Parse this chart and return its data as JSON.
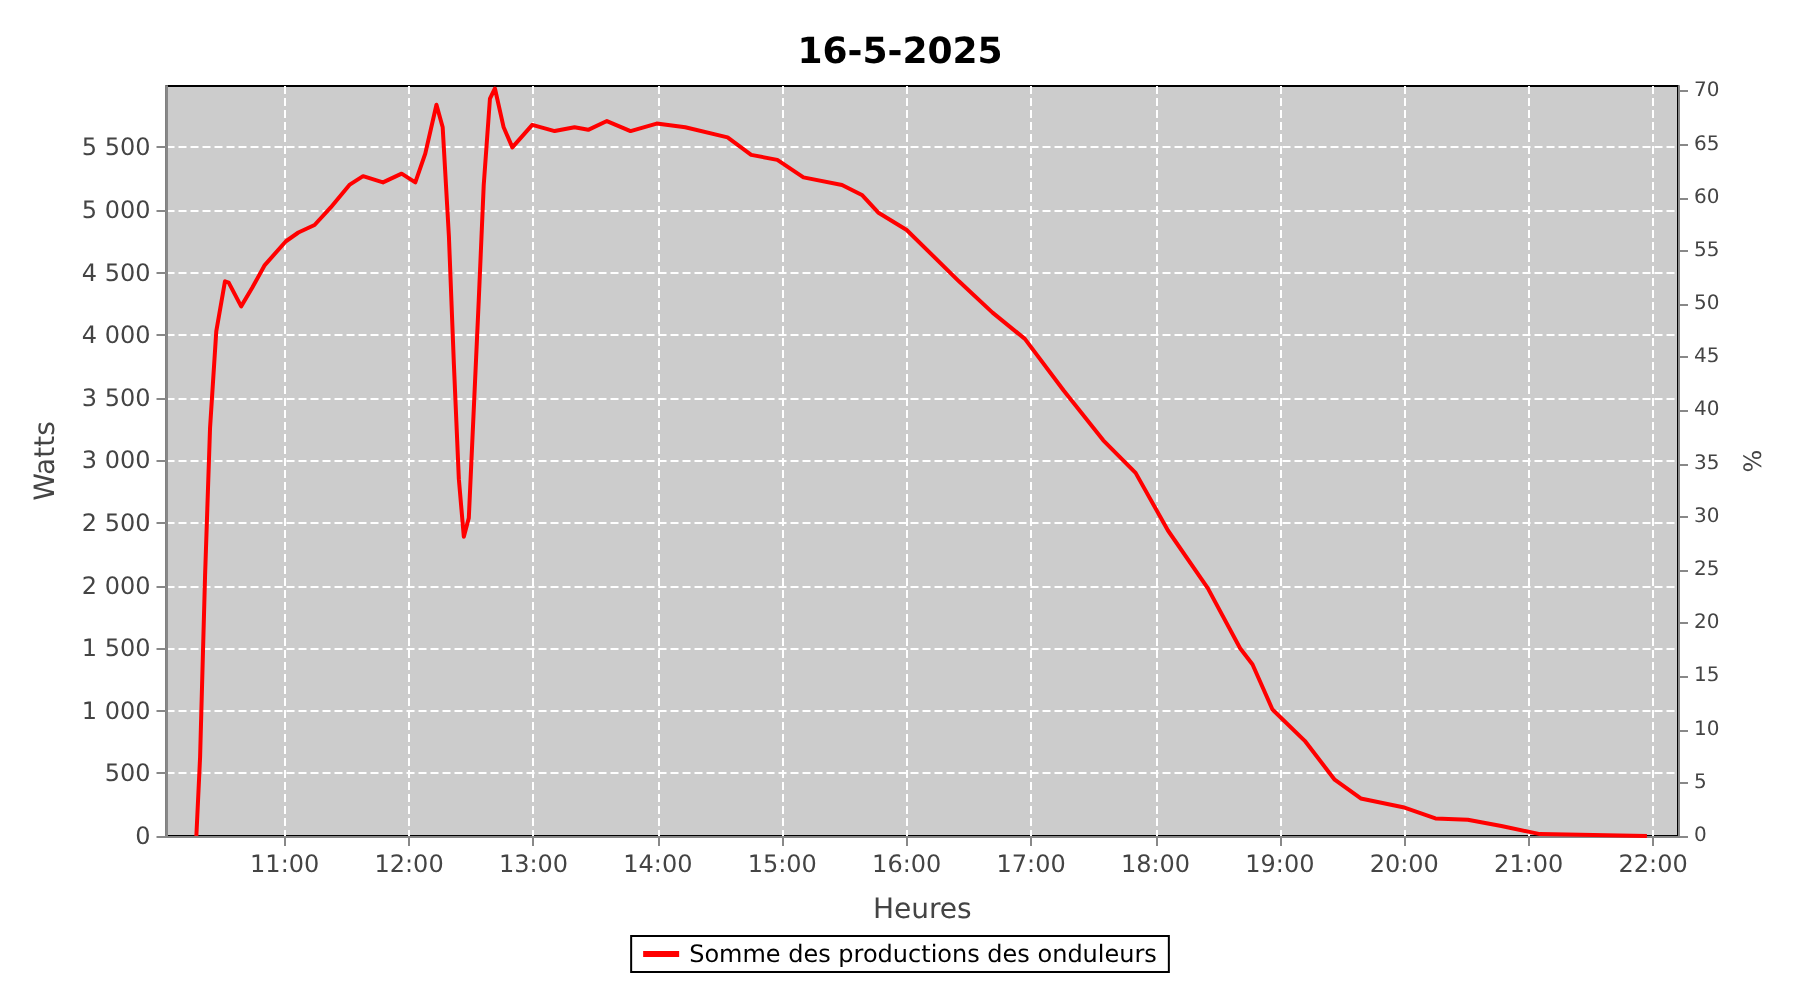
{
  "chart_data": {
    "type": "line",
    "title": "16-5-2025",
    "xlabel": "Heures",
    "ylabel": "Watts",
    "y2label": "%",
    "xlim": [
      10.05,
      22.2
    ],
    "xticks": [
      {
        "value": 11,
        "label": "11:00"
      },
      {
        "value": 12,
        "label": "12:00"
      },
      {
        "value": 13,
        "label": "13:00"
      },
      {
        "value": 14,
        "label": "14:00"
      },
      {
        "value": 15,
        "label": "15:00"
      },
      {
        "value": 16,
        "label": "16:00"
      },
      {
        "value": 17,
        "label": "17:00"
      },
      {
        "value": 18,
        "label": "18:00"
      },
      {
        "value": 19,
        "label": "19:00"
      },
      {
        "value": 20,
        "label": "20:00"
      },
      {
        "value": 21,
        "label": "21:00"
      },
      {
        "value": 22,
        "label": "22:00"
      }
    ],
    "ylim": [
      0,
      5990
    ],
    "yticks": [
      0,
      500,
      {
        "value": 1000,
        "label": "1 000"
      },
      {
        "value": 1500,
        "label": "1 500"
      },
      {
        "value": 2000,
        "label": "2 000"
      },
      {
        "value": 2500,
        "label": "2 500"
      },
      {
        "value": 3000,
        "label": "3 000"
      },
      {
        "value": 3500,
        "label": "3 500"
      },
      {
        "value": 4000,
        "label": "4 000"
      },
      {
        "value": 4500,
        "label": "4 500"
      },
      {
        "value": 5000,
        "label": "5 000"
      },
      {
        "value": 5500,
        "label": "5 500"
      }
    ],
    "y2lim": [
      0,
      70.5
    ],
    "y2ticks": [
      0,
      5,
      10,
      15,
      20,
      25,
      30,
      35,
      40,
      45,
      50,
      55,
      60,
      65,
      70
    ],
    "grid": true,
    "legend": "bottom",
    "marker": "none",
    "line_style": "solid",
    "series": [
      {
        "name": "Somme des productions des onduleurs",
        "color": "#ff0000",
        "x": [
          10.29,
          10.32,
          10.36,
          10.4,
          10.45,
          10.52,
          10.55,
          10.65,
          10.74,
          10.84,
          11.01,
          11.11,
          11.24,
          11.37,
          11.52,
          11.63,
          11.79,
          11.94,
          12.05,
          12.13,
          12.22,
          12.27,
          12.32,
          12.36,
          12.4,
          12.44,
          12.48,
          12.52,
          12.56,
          12.6,
          12.65,
          12.69,
          12.76,
          12.83,
          12.99,
          13.17,
          13.33,
          13.44,
          13.59,
          13.78,
          13.99,
          14.22,
          14.56,
          14.75,
          14.96,
          15.17,
          15.48,
          15.64,
          15.77,
          16.0,
          16.42,
          16.69,
          16.95,
          17.26,
          17.58,
          17.84,
          18.1,
          18.42,
          18.68,
          18.78,
          18.94,
          19.2,
          19.44,
          19.65,
          19.99,
          20.25,
          20.51,
          20.78,
          21.09,
          21.95
        ],
        "values": [
          0,
          630,
          2080,
          3260,
          4030,
          4430,
          4420,
          4230,
          4380,
          4560,
          4750,
          4820,
          4880,
          5020,
          5200,
          5270,
          5220,
          5290,
          5220,
          5450,
          5840,
          5660,
          4790,
          3770,
          2850,
          2390,
          2540,
          3410,
          4280,
          5200,
          5890,
          5970,
          5660,
          5500,
          5680,
          5630,
          5660,
          5640,
          5710,
          5630,
          5690,
          5660,
          5580,
          5440,
          5400,
          5260,
          5200,
          5120,
          4980,
          4840,
          4430,
          4180,
          3970,
          3560,
          3160,
          2900,
          2440,
          1980,
          1500,
          1370,
          1010,
          760,
          450,
          300,
          230,
          140,
          130,
          80,
          15,
          0
        ]
      }
    ]
  }
}
